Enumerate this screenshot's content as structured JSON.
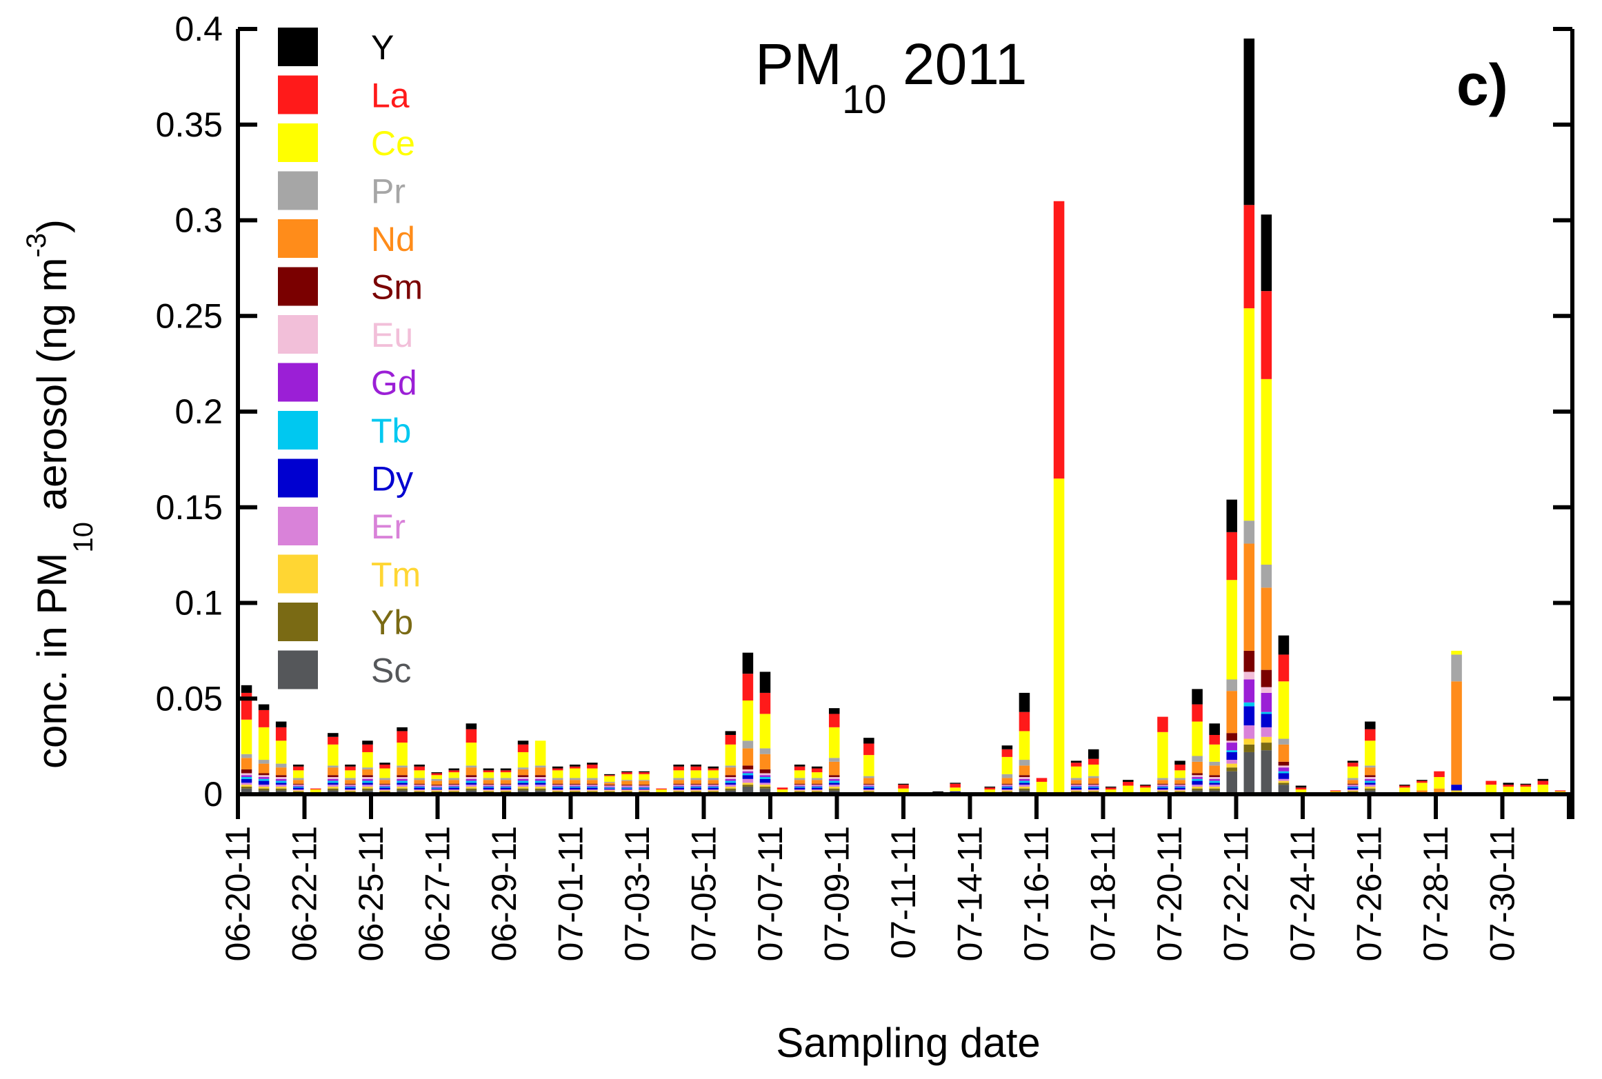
{
  "chart_data": {
    "type": "bar",
    "stacked": true,
    "title": "PM",
    "title_subscript": "10",
    "title_suffix": " 2011",
    "panel_label": "c)",
    "xlabel": "Sampling date",
    "ylabel_prefix": "conc. in PM",
    "ylabel_sub": "10",
    "ylabel_suffix": " aerosol (ng m",
    "ylabel_sup": "-3",
    "ylabel_close": ")",
    "ylim": [
      0,
      0.4
    ],
    "yticks": [
      "0",
      "0.05",
      "0.1",
      "0.15",
      "0.2",
      "0.25",
      "0.3",
      "0.35",
      "0.4"
    ],
    "ytick_values": [
      0,
      0.05,
      0.1,
      0.15,
      0.2,
      0.25,
      0.3,
      0.35,
      0.4
    ],
    "xtick_labels": [
      "06-20-11",
      "06-22-11",
      "06-25-11",
      "06-27-11",
      "06-29-11",
      "07-01-11",
      "07-03-11",
      "07-05-11",
      "07-07-11",
      "07-09-11",
      "07-11-11",
      "07-14-11",
      "07-16-11",
      "07-18-11",
      "07-20-11",
      "07-22-11",
      "07-24-11",
      "07-26-11",
      "07-28-11",
      "07-30-11"
    ],
    "legend_position": "top-left",
    "series_order": [
      "Sc",
      "Yb",
      "Tm",
      "Er",
      "Dy",
      "Tb",
      "Gd",
      "Eu",
      "Sm",
      "Nd",
      "Pr",
      "Ce",
      "La",
      "Y"
    ],
    "legend": [
      {
        "name": "Y",
        "color": "#000000"
      },
      {
        "name": "La",
        "color": "#ff1a1a"
      },
      {
        "name": "Ce",
        "color": "#ffff00"
      },
      {
        "name": "Pr",
        "color": "#a6a6a6"
      },
      {
        "name": "Nd",
        "color": "#ff8c1a"
      },
      {
        "name": "Sm",
        "color": "#7a0000"
      },
      {
        "name": "Eu",
        "color": "#f2bfd9"
      },
      {
        "name": "Gd",
        "color": "#9b1fd6"
      },
      {
        "name": "Tb",
        "color": "#00c8f0"
      },
      {
        "name": "Dy",
        "color": "#0000d0"
      },
      {
        "name": "Er",
        "color": "#d982d9"
      },
      {
        "name": "Tm",
        "color": "#ffd633"
      },
      {
        "name": "Yb",
        "color": "#7a6a14"
      },
      {
        "name": "Sc",
        "color": "#55575a"
      }
    ],
    "bars": [
      {
        "Sc": 0.003,
        "Yb": 0.001,
        "Tm": 0.001,
        "Er": 0.001,
        "Dy": 0.002,
        "Tb": 0.001,
        "Gd": 0.001,
        "Eu": 0.001,
        "Sm": 0.002,
        "Nd": 0.006,
        "Pr": 0.002,
        "Ce": 0.018,
        "La": 0.014,
        "Y": 0.004
      },
      {
        "Sc": 0.002,
        "Yb": 0.001,
        "Tm": 0.001,
        "Er": 0.001,
        "Dy": 0.002,
        "Tb": 0.001,
        "Gd": 0.001,
        "Eu": 0.001,
        "Sm": 0.001,
        "Nd": 0.005,
        "Pr": 0.002,
        "Ce": 0.017,
        "La": 0.009,
        "Y": 0.003
      },
      {
        "Sc": 0.002,
        "Yb": 0.001,
        "Tm": 0.001,
        "Er": 0.001,
        "Dy": 0.001,
        "Tb": 0.001,
        "Gd": 0.001,
        "Eu": 0.001,
        "Sm": 0.001,
        "Nd": 0.004,
        "Pr": 0.002,
        "Ce": 0.012,
        "La": 0.007,
        "Y": 0.003
      },
      {
        "Sc": 0.001,
        "Yb": 0.0005,
        "Tm": 0.0005,
        "Er": 0.0005,
        "Dy": 0.001,
        "Tb": 0.0005,
        "Gd": 0.0005,
        "Eu": 0.0005,
        "Sm": 0.0005,
        "Nd": 0.002,
        "Pr": 0.001,
        "Ce": 0.004,
        "La": 0.002,
        "Y": 0.001
      },
      {
        "Sc": 0.0005,
        "Ce": 0.002,
        "La": 0.0005
      },
      {
        "Sc": 0.002,
        "Yb": 0.001,
        "Tm": 0.001,
        "Er": 0.001,
        "Dy": 0.001,
        "Tb": 0.001,
        "Gd": 0.001,
        "Eu": 0.001,
        "Sm": 0.001,
        "Nd": 0.004,
        "Pr": 0.001,
        "Ce": 0.011,
        "La": 0.004,
        "Y": 0.002
      },
      {
        "Sc": 0.001,
        "Yb": 0.0005,
        "Tm": 0.0005,
        "Er": 0.0005,
        "Dy": 0.001,
        "Tb": 0.0005,
        "Gd": 0.0005,
        "Eu": 0.0005,
        "Sm": 0.0005,
        "Nd": 0.002,
        "Pr": 0.001,
        "Ce": 0.004,
        "La": 0.002,
        "Y": 0.001
      },
      {
        "Sc": 0.002,
        "Yb": 0.001,
        "Tm": 0.001,
        "Er": 0.001,
        "Dy": 0.001,
        "Tb": 0.001,
        "Gd": 0.001,
        "Eu": 0.001,
        "Sm": 0.001,
        "Nd": 0.003,
        "Pr": 0.001,
        "Ce": 0.008,
        "La": 0.004,
        "Y": 0.002
      },
      {
        "Sc": 0.001,
        "Yb": 0.0005,
        "Tm": 0.0005,
        "Er": 0.0005,
        "Dy": 0.001,
        "Tb": 0.0005,
        "Gd": 0.0005,
        "Eu": 0.0005,
        "Sm": 0.0005,
        "Nd": 0.002,
        "Pr": 0.001,
        "Ce": 0.005,
        "La": 0.002,
        "Y": 0.001
      },
      {
        "Sc": 0.002,
        "Yb": 0.001,
        "Tm": 0.001,
        "Er": 0.001,
        "Dy": 0.001,
        "Tb": 0.001,
        "Gd": 0.001,
        "Eu": 0.001,
        "Sm": 0.001,
        "Nd": 0.004,
        "Pr": 0.001,
        "Ce": 0.012,
        "La": 0.006,
        "Y": 0.002
      },
      {
        "Sc": 0.001,
        "Yb": 0.0005,
        "Tm": 0.0005,
        "Er": 0.0005,
        "Dy": 0.001,
        "Tb": 0.0005,
        "Gd": 0.0005,
        "Eu": 0.0005,
        "Sm": 0.0005,
        "Nd": 0.002,
        "Pr": 0.001,
        "Ce": 0.004,
        "La": 0.002,
        "Y": 0.001
      },
      {
        "Sc": 0.001,
        "Yb": 0.0005,
        "Tm": 0.0005,
        "Er": 0.0005,
        "Dy": 0.0005,
        "Tb": 0.0005,
        "Gd": 0.0005,
        "Eu": 0.0005,
        "Sm": 0.0005,
        "Nd": 0.002,
        "Pr": 0.001,
        "Ce": 0.002,
        "La": 0.001,
        "Y": 0.0005
      },
      {
        "Sc": 0.001,
        "Yb": 0.0005,
        "Tm": 0.0005,
        "Er": 0.0005,
        "Dy": 0.001,
        "Tb": 0.0005,
        "Gd": 0.0005,
        "Eu": 0.0005,
        "Sm": 0.0005,
        "Nd": 0.002,
        "Pr": 0.001,
        "Ce": 0.003,
        "La": 0.001,
        "Y": 0.001
      },
      {
        "Sc": 0.002,
        "Yb": 0.001,
        "Tm": 0.001,
        "Er": 0.001,
        "Dy": 0.001,
        "Tb": 0.001,
        "Gd": 0.001,
        "Eu": 0.001,
        "Sm": 0.001,
        "Nd": 0.004,
        "Pr": 0.001,
        "Ce": 0.012,
        "La": 0.007,
        "Y": 0.003
      },
      {
        "Sc": 0.001,
        "Yb": 0.0005,
        "Tm": 0.0005,
        "Er": 0.0005,
        "Dy": 0.001,
        "Tb": 0.0005,
        "Gd": 0.0005,
        "Eu": 0.0005,
        "Sm": 0.0005,
        "Nd": 0.002,
        "Pr": 0.001,
        "Ce": 0.003,
        "La": 0.001,
        "Y": 0.001
      },
      {
        "Sc": 0.001,
        "Yb": 0.0005,
        "Tm": 0.0005,
        "Er": 0.0005,
        "Dy": 0.001,
        "Tb": 0.0005,
        "Gd": 0.0005,
        "Eu": 0.0005,
        "Sm": 0.0005,
        "Nd": 0.002,
        "Pr": 0.001,
        "Ce": 0.003,
        "La": 0.001,
        "Y": 0.001
      },
      {
        "Sc": 0.002,
        "Yb": 0.001,
        "Tm": 0.001,
        "Er": 0.001,
        "Dy": 0.001,
        "Tb": 0.001,
        "Gd": 0.001,
        "Eu": 0.001,
        "Sm": 0.001,
        "Nd": 0.003,
        "Pr": 0.001,
        "Ce": 0.008,
        "La": 0.004,
        "Y": 0.002
      },
      {
        "Sc": 0.002,
        "Yb": 0.001,
        "Tm": 0.001,
        "Er": 0.001,
        "Dy": 0.001,
        "Tb": 0.001,
        "Gd": 0.001,
        "Eu": 0.001,
        "Sm": 0.001,
        "Nd": 0.004,
        "Pr": 0.001,
        "Ce": 0.013,
        "La": 0.0,
        "Y": 0.0
      },
      {
        "Sc": 0.001,
        "Yb": 0.0005,
        "Tm": 0.0005,
        "Er": 0.0005,
        "Dy": 0.001,
        "Tb": 0.0005,
        "Gd": 0.0005,
        "Eu": 0.0005,
        "Sm": 0.0005,
        "Nd": 0.002,
        "Pr": 0.001,
        "Ce": 0.004,
        "La": 0.001,
        "Y": 0.001
      },
      {
        "Sc": 0.001,
        "Yb": 0.0005,
        "Tm": 0.0005,
        "Er": 0.0005,
        "Dy": 0.001,
        "Tb": 0.0005,
        "Gd": 0.0005,
        "Eu": 0.0005,
        "Sm": 0.0005,
        "Nd": 0.002,
        "Pr": 0.001,
        "Ce": 0.005,
        "La": 0.001,
        "Y": 0.001
      },
      {
        "Sc": 0.001,
        "Yb": 0.0005,
        "Tm": 0.0005,
        "Er": 0.0005,
        "Dy": 0.001,
        "Tb": 0.0005,
        "Gd": 0.0005,
        "Eu": 0.0005,
        "Sm": 0.0005,
        "Nd": 0.002,
        "Pr": 0.001,
        "Ce": 0.005,
        "La": 0.002,
        "Y": 0.001
      },
      {
        "Sc": 0.001,
        "Yb": 0.0005,
        "Tm": 0.0005,
        "Er": 0.0005,
        "Dy": 0.0005,
        "Tb": 0.0005,
        "Gd": 0.0005,
        "Eu": 0.0005,
        "Sm": 0.0005,
        "Nd": 0.001,
        "Pr": 0.0005,
        "Ce": 0.003,
        "La": 0.0005,
        "Y": 0.0005
      },
      {
        "Sc": 0.001,
        "Yb": 0.0005,
        "Tm": 0.0005,
        "Er": 0.0005,
        "Dy": 0.0005,
        "Tb": 0.0005,
        "Gd": 0.0005,
        "Eu": 0.0005,
        "Sm": 0.0005,
        "Nd": 0.002,
        "Pr": 0.0005,
        "Ce": 0.003,
        "La": 0.001,
        "Y": 0.0005
      },
      {
        "Sc": 0.001,
        "Yb": 0.0005,
        "Tm": 0.0005,
        "Er": 0.0005,
        "Dy": 0.0005,
        "Tb": 0.0005,
        "Gd": 0.0005,
        "Eu": 0.0005,
        "Sm": 0.0005,
        "Nd": 0.002,
        "Pr": 0.0005,
        "Ce": 0.003,
        "La": 0.001,
        "Y": 0.0005
      },
      {
        "Sc": 0.0005,
        "Ce": 0.002,
        "La": 0.0005
      },
      {
        "Sc": 0.001,
        "Yb": 0.0005,
        "Tm": 0.0005,
        "Er": 0.0005,
        "Dy": 0.001,
        "Tb": 0.0005,
        "Gd": 0.0005,
        "Eu": 0.0005,
        "Sm": 0.0005,
        "Nd": 0.002,
        "Pr": 0.001,
        "Ce": 0.004,
        "La": 0.002,
        "Y": 0.001
      },
      {
        "Sc": 0.001,
        "Yb": 0.0005,
        "Tm": 0.0005,
        "Er": 0.0005,
        "Dy": 0.001,
        "Tb": 0.0005,
        "Gd": 0.0005,
        "Eu": 0.0005,
        "Sm": 0.0005,
        "Nd": 0.002,
        "Pr": 0.001,
        "Ce": 0.004,
        "La": 0.002,
        "Y": 0.001
      },
      {
        "Sc": 0.001,
        "Yb": 0.0005,
        "Tm": 0.0005,
        "Er": 0.0005,
        "Dy": 0.001,
        "Tb": 0.0005,
        "Gd": 0.0005,
        "Eu": 0.0005,
        "Sm": 0.0005,
        "Nd": 0.002,
        "Pr": 0.001,
        "Ce": 0.004,
        "La": 0.001,
        "Y": 0.001
      },
      {
        "Sc": 0.002,
        "Yb": 0.001,
        "Tm": 0.001,
        "Er": 0.001,
        "Dy": 0.001,
        "Tb": 0.001,
        "Gd": 0.001,
        "Eu": 0.001,
        "Sm": 0.001,
        "Nd": 0.004,
        "Pr": 0.001,
        "Ce": 0.011,
        "La": 0.005,
        "Y": 0.002
      },
      {
        "Sc": 0.004,
        "Yb": 0.001,
        "Tm": 0.001,
        "Er": 0.002,
        "Dy": 0.002,
        "Tb": 0.001,
        "Gd": 0.001,
        "Eu": 0.001,
        "Sm": 0.002,
        "Nd": 0.009,
        "Pr": 0.004,
        "Ce": 0.021,
        "La": 0.014,
        "Y": 0.011
      },
      {
        "Sc": 0.003,
        "Yb": 0.001,
        "Tm": 0.001,
        "Er": 0.001,
        "Dy": 0.002,
        "Tb": 0.001,
        "Gd": 0.001,
        "Eu": 0.001,
        "Sm": 0.002,
        "Nd": 0.008,
        "Pr": 0.003,
        "Ce": 0.018,
        "La": 0.011,
        "Y": 0.011
      },
      {
        "Sc": 0.0005,
        "Ce": 0.002,
        "La": 0.001
      },
      {
        "Sc": 0.001,
        "Yb": 0.0005,
        "Tm": 0.0005,
        "Er": 0.0005,
        "Dy": 0.001,
        "Tb": 0.0005,
        "Gd": 0.0005,
        "Eu": 0.0005,
        "Sm": 0.0005,
        "Nd": 0.002,
        "Pr": 0.001,
        "Ce": 0.004,
        "La": 0.002,
        "Y": 0.001
      },
      {
        "Sc": 0.001,
        "Yb": 0.0005,
        "Tm": 0.0005,
        "Er": 0.0005,
        "Dy": 0.001,
        "Tb": 0.0005,
        "Gd": 0.0005,
        "Eu": 0.0005,
        "Sm": 0.0005,
        "Nd": 0.002,
        "Pr": 0.001,
        "Ce": 0.003,
        "La": 0.002,
        "Y": 0.001
      },
      {
        "Sc": 0.002,
        "Yb": 0.001,
        "Tm": 0.001,
        "Er": 0.001,
        "Dy": 0.001,
        "Tb": 0.001,
        "Gd": 0.001,
        "Eu": 0.001,
        "Sm": 0.001,
        "Nd": 0.007,
        "Pr": 0.002,
        "Ce": 0.016,
        "La": 0.007,
        "Y": 0.003
      },
      null,
      {
        "Sc": 0.001,
        "Yb": 0.0005,
        "Tm": 0.0005,
        "Er": 0.0005,
        "Dy": 0.001,
        "Tb": 0.0005,
        "Gd": 0.0005,
        "Eu": 0.0005,
        "Sm": 0.0005,
        "Nd": 0.003,
        "Pr": 0.001,
        "Ce": 0.011,
        "La": 0.006,
        "Y": 0.003
      },
      null,
      {
        "Sc": 0.0005,
        "Dy": 0.0005,
        "Ce": 0.002,
        "La": 0.002,
        "Y": 0.0005
      },
      null,
      {
        "La": 0.001,
        "Y": 0.0005
      },
      {
        "Sc": 0.001,
        "Dy": 0.0005,
        "Ce": 0.002,
        "La": 0.002,
        "Y": 0.0005
      },
      null,
      {
        "Sc": 0.0005,
        "Ce": 0.002,
        "La": 0.001,
        "Y": 0.0005
      },
      {
        "Sc": 0.001,
        "Yb": 0.0005,
        "Tm": 0.0005,
        "Er": 0.0005,
        "Dy": 0.001,
        "Tb": 0.0005,
        "Gd": 0.0005,
        "Eu": 0.0005,
        "Sm": 0.0005,
        "Nd": 0.003,
        "Pr": 0.002,
        "Ce": 0.009,
        "La": 0.004,
        "Y": 0.002
      },
      {
        "Sc": 0.002,
        "Yb": 0.001,
        "Tm": 0.001,
        "Er": 0.001,
        "Dy": 0.001,
        "Tb": 0.001,
        "Gd": 0.001,
        "Eu": 0.001,
        "Sm": 0.001,
        "Nd": 0.005,
        "Pr": 0.003,
        "Ce": 0.015,
        "La": 0.01,
        "Y": 0.01
      },
      {
        "Sc": 0.0005,
        "Ce": 0.006,
        "La": 0.002
      },
      {
        "Sc": 0.001,
        "Ce": 0.164,
        "La": 0.145
      },
      {
        "Sc": 0.001,
        "Yb": 0.0005,
        "Tm": 0.0005,
        "Er": 0.0005,
        "Dy": 0.001,
        "Tb": 0.0005,
        "Gd": 0.0005,
        "Eu": 0.0005,
        "Sm": 0.0005,
        "Nd": 0.002,
        "Pr": 0.001,
        "Ce": 0.006,
        "La": 0.002,
        "Y": 0.001
      },
      {
        "Sc": 0.001,
        "Yb": 0.0005,
        "Tm": 0.0005,
        "Er": 0.0005,
        "Dy": 0.001,
        "Tb": 0.0005,
        "Gd": 0.0005,
        "Eu": 0.0005,
        "Sm": 0.0005,
        "Nd": 0.003,
        "Pr": 0.001,
        "Ce": 0.006,
        "La": 0.003,
        "Y": 0.005
      },
      {
        "Sc": 0.0005,
        "Ce": 0.002,
        "La": 0.001,
        "Y": 0.0005
      },
      {
        "Sc": 0.0005,
        "Ce": 0.004,
        "La": 0.002,
        "Y": 0.001
      },
      {
        "Sc": 0.0005,
        "Ce": 0.003,
        "La": 0.001,
        "Y": 0.0005
      },
      {
        "Sc": 0.001,
        "Yb": 0.0005,
        "Tm": 0.0005,
        "Er": 0.0005,
        "Dy": 0.001,
        "Tb": 0.0005,
        "Gd": 0.0005,
        "Eu": 0.0005,
        "Sm": 0.0005,
        "Nd": 0.002,
        "Pr": 0.001,
        "Ce": 0.024,
        "La": 0.008,
        "Y": 0.0
      },
      {
        "Sc": 0.001,
        "Yb": 0.0005,
        "Tm": 0.0005,
        "Er": 0.0005,
        "Dy": 0.001,
        "Tb": 0.0005,
        "Gd": 0.0005,
        "Eu": 0.0005,
        "Sm": 0.0005,
        "Nd": 0.002,
        "Pr": 0.001,
        "Ce": 0.004,
        "La": 0.003,
        "Y": 0.002
      },
      {
        "Sc": 0.002,
        "Yb": 0.001,
        "Tm": 0.001,
        "Er": 0.001,
        "Dy": 0.002,
        "Tb": 0.001,
        "Gd": 0.001,
        "Eu": 0.001,
        "Sm": 0.001,
        "Nd": 0.006,
        "Pr": 0.003,
        "Ce": 0.018,
        "La": 0.009,
        "Y": 0.008
      },
      {
        "Sc": 0.002,
        "Yb": 0.001,
        "Tm": 0.001,
        "Er": 0.001,
        "Dy": 0.001,
        "Tb": 0.001,
        "Gd": 0.001,
        "Eu": 0.001,
        "Sm": 0.001,
        "Nd": 0.005,
        "Pr": 0.002,
        "Ce": 0.009,
        "La": 0.005,
        "Y": 0.006
      },
      {
        "Sc": 0.012,
        "Yb": 0.002,
        "Tm": 0.002,
        "Er": 0.002,
        "Dy": 0.004,
        "Tb": 0.001,
        "Gd": 0.004,
        "Eu": 0.001,
        "Sm": 0.004,
        "Nd": 0.022,
        "Pr": 0.006,
        "Ce": 0.052,
        "La": 0.025,
        "Y": 0.017
      },
      {
        "Sc": 0.022,
        "Yb": 0.004,
        "Tm": 0.003,
        "Er": 0.007,
        "Dy": 0.01,
        "Tb": 0.002,
        "Gd": 0.012,
        "Eu": 0.004,
        "Sm": 0.011,
        "Nd": 0.056,
        "Pr": 0.012,
        "Ce": 0.111,
        "La": 0.054,
        "Y": 0.087
      },
      {
        "Sc": 0.023,
        "Yb": 0.004,
        "Tm": 0.003,
        "Er": 0.005,
        "Dy": 0.007,
        "Tb": 0.001,
        "Gd": 0.01,
        "Eu": 0.003,
        "Sm": 0.009,
        "Nd": 0.043,
        "Pr": 0.012,
        "Ce": 0.097,
        "La": 0.046,
        "Y": 0.04
      },
      {
        "Sc": 0.005,
        "Yb": 0.001,
        "Tm": 0.001,
        "Er": 0.001,
        "Dy": 0.003,
        "Tb": 0.001,
        "Gd": 0.002,
        "Eu": 0.001,
        "Sm": 0.002,
        "Nd": 0.009,
        "Pr": 0.003,
        "Ce": 0.03,
        "La": 0.014,
        "Y": 0.01
      },
      {
        "Sc": 0.0005,
        "Ce": 0.002,
        "La": 0.001,
        "Y": 0.001
      },
      null,
      {
        "Sc": 0.0005,
        "Ce": 0.001,
        "La": 0.0005
      },
      {
        "Sc": 0.001,
        "Yb": 0.0005,
        "Tm": 0.0005,
        "Er": 0.0005,
        "Dy": 0.001,
        "Tb": 0.0005,
        "Gd": 0.0005,
        "Eu": 0.0005,
        "Sm": 0.0005,
        "Nd": 0.002,
        "Pr": 0.001,
        "Ce": 0.006,
        "La": 0.002,
        "Y": 0.001
      },
      {
        "Sc": 0.002,
        "Yb": 0.001,
        "Tm": 0.001,
        "Er": 0.001,
        "Dy": 0.001,
        "Tb": 0.001,
        "Gd": 0.001,
        "Eu": 0.001,
        "Sm": 0.001,
        "Nd": 0.004,
        "Pr": 0.001,
        "Ce": 0.013,
        "La": 0.006,
        "Y": 0.004
      },
      null,
      {
        "Sc": 0.0005,
        "Ce": 0.003,
        "La": 0.001,
        "Y": 0.0005
      },
      {
        "Sc": 0.001,
        "Nd": 0.001,
        "Ce": 0.004,
        "La": 0.001,
        "Y": 0.0005
      },
      {
        "Sc": 0.001,
        "Nd": 0.002,
        "Ce": 0.006,
        "La": 0.003,
        "Y": 0.0
      },
      {
        "Sc": 0.001,
        "Dy": 0.003,
        "Nd": 0.054,
        "Pr": 0.014,
        "Tm": 0.001,
        "Ce": 0.002,
        "La": 0.0,
        "Y": 0.0
      },
      null,
      {
        "Sc": 0.0005,
        "Nd": 0.0005,
        "Ce": 0.004,
        "La": 0.002
      },
      {
        "Sc": 0.0005,
        "Nd": 0.0005,
        "Ce": 0.003,
        "La": 0.001,
        "Y": 0.001
      },
      {
        "Sc": 0.0005,
        "Nd": 0.0005,
        "Ce": 0.003,
        "La": 0.001,
        "Y": 0.0005
      },
      {
        "Sc": 0.0005,
        "Nd": 0.0005,
        "Ce": 0.004,
        "La": 0.002,
        "Y": 0.001
      },
      {
        "Sc": 0.0005,
        "Ce": 0.001,
        "La": 0.0005
      }
    ]
  }
}
